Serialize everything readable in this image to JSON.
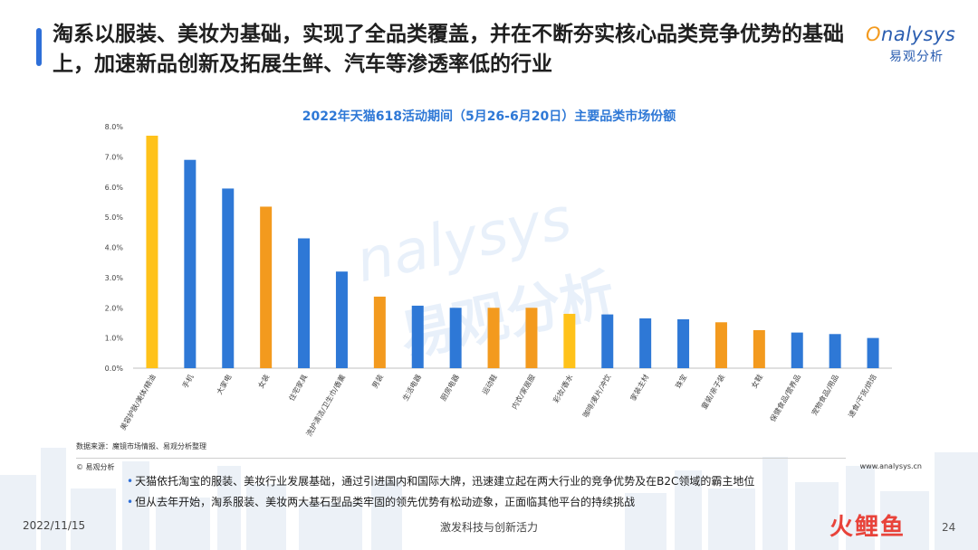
{
  "header": {
    "headline": "淘系以服装、美妆为基础，实现了全品类覆盖，并在不断夯实核心品类竞争优势的基础上，加速新品创新及拓展生鲜、汽车等渗透率低的行业",
    "logo_text": "nalysys",
    "logo_cn": "易观分析"
  },
  "watermark": {
    "text_en": "nalysys",
    "text_cn": "易观分析"
  },
  "colors": {
    "blue": "#2e78d6",
    "orange": "#f39a1e",
    "yellow": "#ffc21a"
  },
  "chart_data": {
    "type": "bar",
    "title": "2022年天猫618活动期间（5月26-6月20日）主要品类市场份额",
    "xlabel": "",
    "ylabel": "",
    "ylim": [
      0,
      8
    ],
    "yticks": [
      "0.0%",
      "1.0%",
      "2.0%",
      "3.0%",
      "4.0%",
      "5.0%",
      "6.0%",
      "7.0%",
      "8.0%"
    ],
    "grid": false,
    "categories": [
      "美容护肤/美体/精油",
      "手机",
      "大家电",
      "女装",
      "住宅家具",
      "洗护清洁/卫生巾/香薰",
      "男装",
      "生活电器",
      "厨房电器",
      "运动鞋",
      "内衣/家居服",
      "彩妆/香水",
      "咖啡/麦片/冲饮",
      "家装主材",
      "珠宝",
      "童装/亲子装",
      "女鞋",
      "保健食品/营养品",
      "宠物食品/用品",
      "速食/干货/烘焙"
    ],
    "values": [
      7.7,
      6.9,
      5.95,
      5.35,
      4.3,
      3.2,
      2.37,
      2.07,
      2.0,
      2.0,
      2.0,
      1.8,
      1.78,
      1.65,
      1.62,
      1.52,
      1.26,
      1.18,
      1.13,
      1.0
    ],
    "bar_colors": [
      "yellow",
      "blue",
      "blue",
      "orange",
      "blue",
      "blue",
      "orange",
      "blue",
      "blue",
      "orange",
      "orange",
      "yellow",
      "blue",
      "blue",
      "blue",
      "orange",
      "orange",
      "blue",
      "blue",
      "blue"
    ]
  },
  "source_note": "数据来源：魔镜市场情报、易观分析整理",
  "copyright": "© 易观分析",
  "website": "www.analysys.cn",
  "bullets": [
    "天猫依托淘宝的服装、美妆行业发展基础，通过引进国内和国际大牌，迅速建立起在两大行业的竞争优势及在B2C领域的霸主地位",
    "但从去年开始，淘系服装、美妆两大基石型品类牢固的领先优势有松动迹象，正面临其他平台的持续挑战"
  ],
  "footer": {
    "date": "2022/11/15",
    "slogan": "激发科技与创新活力",
    "brand": "火鲤鱼",
    "page": "24"
  }
}
